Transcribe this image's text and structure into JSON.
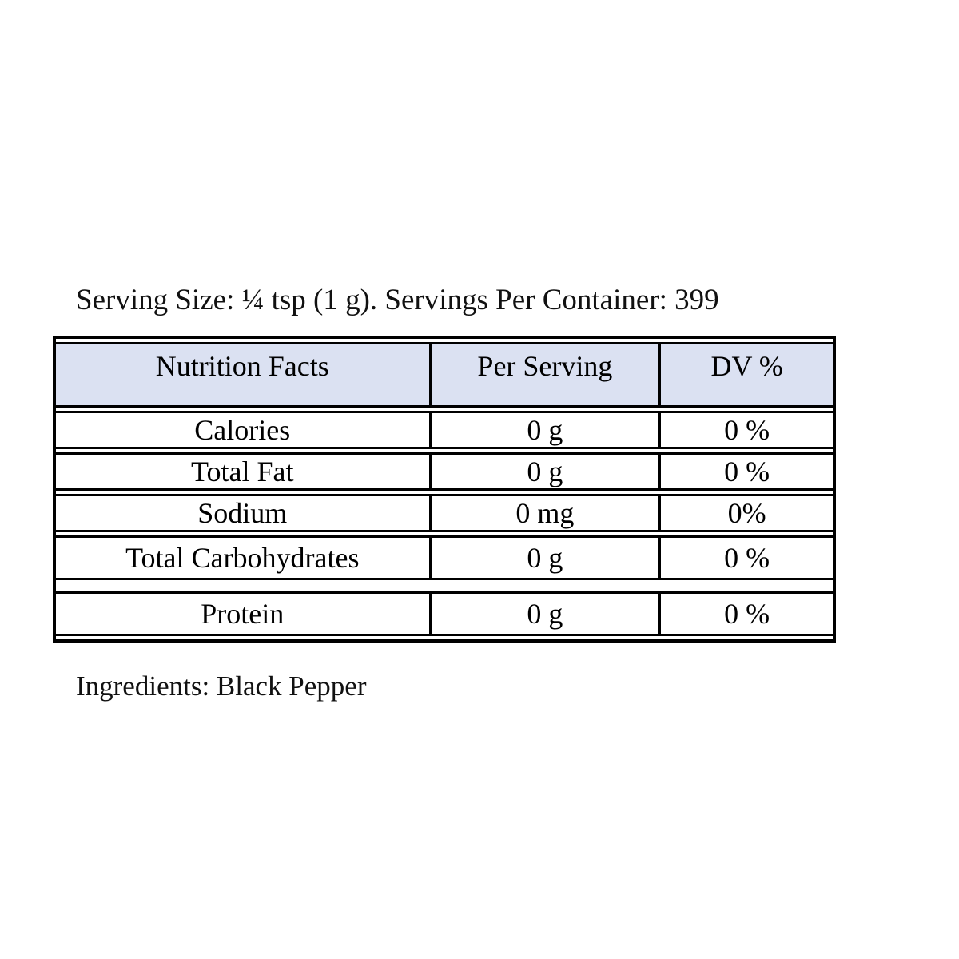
{
  "label": {
    "serving_line": "Serving Size: ¼ tsp (1 g). Servings Per Container: 399",
    "ingredients_line": "Ingredients: Black Pepper"
  },
  "table": {
    "headers": {
      "nutrient": "Nutrition Facts",
      "per_serving": "Per Serving",
      "dv": "DV %"
    },
    "rows": [
      {
        "nutrient": "Calories",
        "per_serving": "0 g",
        "dv": "0 %"
      },
      {
        "nutrient": "Total Fat",
        "per_serving": "0 g",
        "dv": "0 %"
      },
      {
        "nutrient": "Sodium",
        "per_serving": "0 mg",
        "dv": "0%"
      },
      {
        "nutrient": "Total Carbohydrates",
        "per_serving": "0 g",
        "dv": "0 %"
      },
      {
        "nutrient": "Protein",
        "per_serving": "0 g",
        "dv": "0 %"
      }
    ],
    "colors": {
      "header_background": "#dbe1f2",
      "border": "#000000",
      "text": "#000000"
    }
  }
}
